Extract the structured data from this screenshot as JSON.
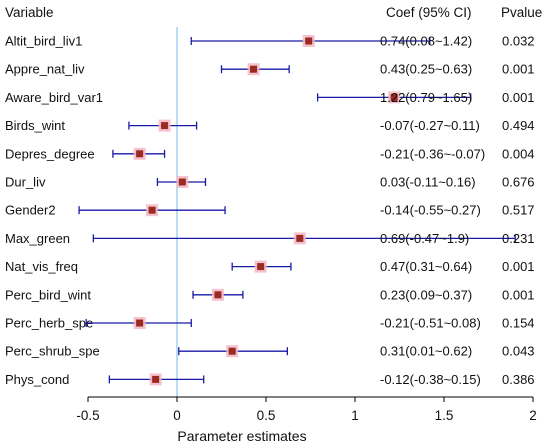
{
  "header": {
    "variable": "Variable",
    "coef": "Coef (95% CI)",
    "pvalue": "Pvalue"
  },
  "colors": {
    "ci_line": "#1a1aa8",
    "point": "#9c2a22",
    "point_halo": "#f2b8c4",
    "reference_line": "#8cc4ec",
    "axis": "#000000"
  },
  "chart_data": {
    "type": "forest",
    "title": "",
    "xlabel": "Parameter estimates",
    "ylabel": "",
    "xlim": [
      -0.62,
      2.0
    ],
    "xticks": [
      -0.5,
      0,
      0.5,
      1,
      1.5,
      2
    ],
    "xtick_labels": [
      "-0.5",
      "0",
      "0.5",
      "1",
      "1.5",
      "2"
    ],
    "reference_x": 0,
    "grid": false,
    "rows": [
      {
        "variable": "Altit_bird_liv1",
        "coef": 0.74,
        "lo": 0.08,
        "hi": 1.42,
        "ci_text": "0.74(0.08~1.42)",
        "pvalue": "0.032"
      },
      {
        "variable": "Appre_nat_liv",
        "coef": 0.43,
        "lo": 0.25,
        "hi": 0.63,
        "ci_text": "0.43(0.25~0.63)",
        "pvalue": "0.001"
      },
      {
        "variable": "Aware_bird_var1",
        "coef": 1.22,
        "lo": 0.79,
        "hi": 1.65,
        "ci_text": "1.22(0.79~1.65)",
        "pvalue": "0.001"
      },
      {
        "variable": "Birds_wint",
        "coef": -0.07,
        "lo": -0.27,
        "hi": 0.11,
        "ci_text": "-0.07(-0.27~0.11)",
        "pvalue": "0.494"
      },
      {
        "variable": "Depres_degree",
        "coef": -0.21,
        "lo": -0.36,
        "hi": -0.07,
        "ci_text": "-0.21(-0.36~-0.07)",
        "pvalue": "0.004"
      },
      {
        "variable": "Dur_liv",
        "coef": 0.03,
        "lo": -0.11,
        "hi": 0.16,
        "ci_text": "0.03(-0.11~0.16)",
        "pvalue": "0.676"
      },
      {
        "variable": "Gender2",
        "coef": -0.14,
        "lo": -0.55,
        "hi": 0.27,
        "ci_text": "-0.14(-0.55~0.27)",
        "pvalue": "0.517"
      },
      {
        "variable": "Max_green",
        "coef": 0.69,
        "lo": -0.47,
        "hi": 1.9,
        "ci_text": "0.69(-0.47~1.9)",
        "pvalue": "0.231"
      },
      {
        "variable": "Nat_vis_freq",
        "coef": 0.47,
        "lo": 0.31,
        "hi": 0.64,
        "ci_text": "0.47(0.31~0.64)",
        "pvalue": "0.001"
      },
      {
        "variable": "Perc_bird_wint",
        "coef": 0.23,
        "lo": 0.09,
        "hi": 0.37,
        "ci_text": "0.23(0.09~0.37)",
        "pvalue": "0.001"
      },
      {
        "variable": "Perc_herb_spe",
        "coef": -0.21,
        "lo": -0.51,
        "hi": 0.08,
        "ci_text": "-0.21(-0.51~0.08)",
        "pvalue": "0.154"
      },
      {
        "variable": "Perc_shrub_spe",
        "coef": 0.31,
        "lo": 0.01,
        "hi": 0.62,
        "ci_text": "0.31(0.01~0.62)",
        "pvalue": "0.043"
      },
      {
        "variable": "Phys_cond",
        "coef": -0.12,
        "lo": -0.38,
        "hi": 0.15,
        "ci_text": "-0.12(-0.38~0.15)",
        "pvalue": "0.386"
      }
    ]
  }
}
